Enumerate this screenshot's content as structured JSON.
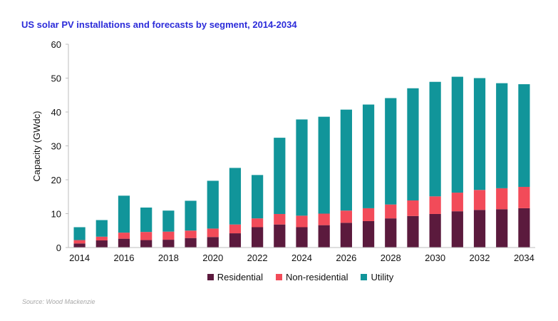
{
  "title": "US solar PV installations and forecasts by segment, 2014-2034",
  "source": "Source: Wood Mackenzie",
  "colors": {
    "Residential": "#5b1a3d",
    "Non-residential": "#f24b59",
    "Utility": "#11959a"
  },
  "chart_data": {
    "type": "bar",
    "stacked": true,
    "title": "US solar PV installations and forecasts by segment, 2014-2034",
    "xlabel": "",
    "ylabel": "Capacity (GWdc)",
    "ylim": [
      0,
      60
    ],
    "yticks": [
      0,
      10,
      20,
      30,
      40,
      50,
      60
    ],
    "xtick_labels": [
      "2014",
      "2016",
      "2018",
      "2020",
      "2022",
      "2024",
      "2026",
      "2028",
      "2030",
      "2032",
      "2034"
    ],
    "categories": [
      "2014",
      "2015",
      "2016",
      "2017",
      "2018",
      "2019",
      "2020",
      "2021",
      "2022",
      "2023",
      "2024",
      "2025",
      "2026",
      "2027",
      "2028",
      "2029",
      "2030",
      "2031",
      "2032",
      "2033",
      "2034"
    ],
    "legend_position": "bottom",
    "grid": false,
    "series": [
      {
        "name": "Residential",
        "values": [
          1.2,
          2.1,
          2.6,
          2.2,
          2.3,
          2.8,
          3.1,
          4.2,
          6.0,
          6.8,
          6.0,
          6.6,
          7.3,
          7.8,
          8.6,
          9.3,
          9.9,
          10.7,
          11.1,
          11.3,
          11.6
        ]
      },
      {
        "name": "Non-residential",
        "values": [
          1.0,
          1.1,
          1.8,
          2.4,
          2.4,
          2.2,
          2.5,
          2.6,
          2.6,
          3.1,
          3.4,
          3.4,
          3.6,
          3.8,
          4.1,
          4.6,
          5.2,
          5.5,
          5.9,
          6.2,
          6.3
        ]
      },
      {
        "name": "Utility",
        "values": [
          3.8,
          4.9,
          10.9,
          7.2,
          6.2,
          8.8,
          14.1,
          16.7,
          12.8,
          22.5,
          28.4,
          28.6,
          29.8,
          30.6,
          31.4,
          33.1,
          33.8,
          34.2,
          33.0,
          31.0,
          30.3
        ]
      }
    ]
  }
}
